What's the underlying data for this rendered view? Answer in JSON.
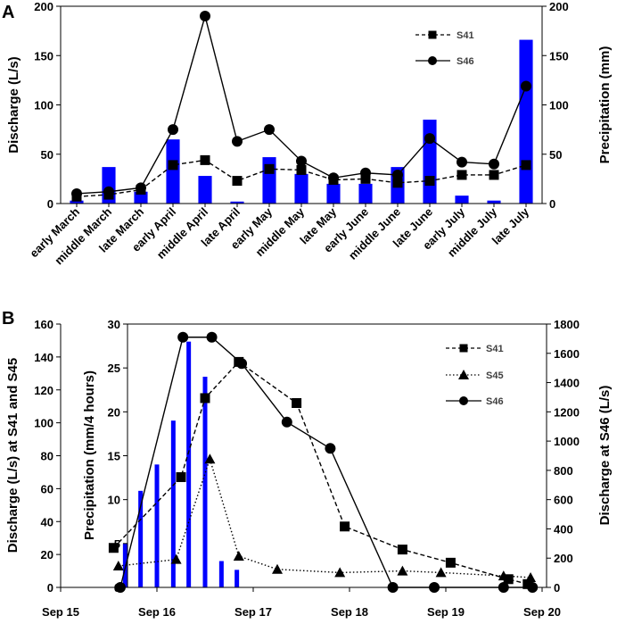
{
  "chart_data": [
    {
      "id": "A",
      "type": "bar+line",
      "panel_label": "A",
      "categories": [
        "early March",
        "middle March",
        "late March",
        "early April",
        "middle April",
        "late April",
        "early May",
        "middle May",
        "late May",
        "early June",
        "middle June",
        "late June",
        "early July",
        "middle July",
        "late July"
      ],
      "ylabel": "Discharge (L/s)",
      "ylabel_right": "Precipitation (mm)",
      "ylim": [
        0,
        200
      ],
      "ylim_right": [
        0,
        200
      ],
      "yticks": [
        0,
        50,
        100,
        150,
        200
      ],
      "yticks_right": [
        0,
        50,
        100,
        150,
        200
      ],
      "bars": {
        "name": "Precipitation",
        "axis": "right",
        "color": "#0000ff",
        "values": [
          3,
          37,
          12,
          65,
          28,
          2,
          47,
          30,
          20,
          20,
          37,
          85,
          8,
          3,
          166
        ]
      },
      "series": [
        {
          "name": "S41",
          "axis": "left",
          "marker": "square",
          "dash": "dashed",
          "values": [
            7,
            9,
            14,
            39,
            44,
            23,
            35,
            34,
            24,
            25,
            21,
            23,
            29,
            29,
            39
          ]
        },
        {
          "name": "S46",
          "axis": "left",
          "marker": "circle",
          "dash": "solid",
          "values": [
            10,
            12,
            16,
            75,
            190,
            63,
            75,
            43,
            26,
            31,
            29,
            66,
            42,
            40,
            119
          ]
        }
      ],
      "legend_position": "top-right"
    },
    {
      "id": "B",
      "type": "bar+line",
      "panel_label": "B",
      "xlabel": "",
      "x_tick_labels": [
        "Sep 15",
        "Sep 16",
        "Sep 17",
        "Sep 18",
        "Sep 19",
        "Sep 20"
      ],
      "xlim": [
        0,
        5
      ],
      "ylabel": "Discharge (L/s) at S41 and S45",
      "ylim": [
        0,
        160
      ],
      "yticks": [
        0,
        20,
        40,
        60,
        80,
        100,
        120,
        140,
        160
      ],
      "ylabel_inner": "Precipitation (mm/4 hours)",
      "ylim_inner": [
        0,
        30
      ],
      "yticks_inner": [
        0,
        5,
        10,
        15,
        20,
        25,
        30
      ],
      "ylabel_right": "Discharge at S46 (L/s)",
      "ylim_right": [
        0,
        1800
      ],
      "yticks_right": [
        0,
        200,
        400,
        600,
        800,
        1000,
        1200,
        1400,
        1600,
        1800
      ],
      "bars": {
        "name": "Precipitation",
        "axis": "inner",
        "color": "#0000ff",
        "x": [
          0.67,
          0.83,
          1.0,
          1.17,
          1.33,
          1.5,
          1.67,
          1.83
        ],
        "values": [
          5,
          11,
          14,
          19,
          28,
          24,
          3,
          2
        ]
      },
      "series": [
        {
          "name": "S41",
          "axis": "left",
          "marker": "square",
          "dash": "dashed",
          "x": [
            0.55,
            1.25,
            1.5,
            1.85,
            2.45,
            2.95,
            3.55,
            4.05,
            4.65,
            4.85
          ],
          "y": [
            24,
            67,
            115,
            137,
            112,
            37,
            23,
            15,
            5,
            2
          ]
        },
        {
          "name": "S45",
          "axis": "left",
          "marker": "triangle",
          "dash": "dotted",
          "x": [
            0.6,
            1.2,
            1.55,
            1.85,
            2.25,
            2.9,
            3.55,
            3.95,
            4.6,
            4.88
          ],
          "y": [
            13,
            17,
            78,
            19,
            11,
            9,
            10,
            9,
            7,
            6
          ]
        },
        {
          "name": "S46",
          "axis": "right",
          "marker": "circle",
          "dash": "solid",
          "x": [
            0.62,
            1.27,
            1.57,
            1.88,
            2.35,
            2.8,
            3.45,
            3.88,
            4.6,
            4.9
          ],
          "y": [
            0,
            1710,
            1710,
            1530,
            1130,
            950,
            0,
            0,
            0,
            0
          ]
        }
      ],
      "legend_position": "top-right"
    }
  ]
}
